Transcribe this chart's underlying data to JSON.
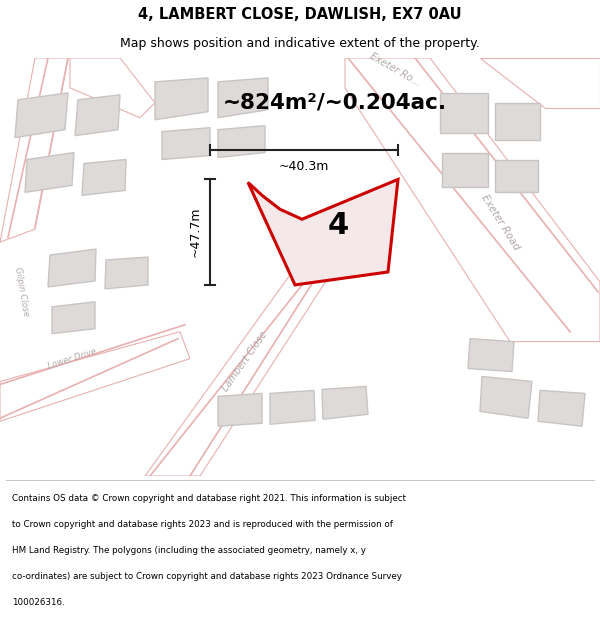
{
  "title_line1": "4, LAMBERT CLOSE, DAWLISH, EX7 0AU",
  "title_line2": "Map shows position and indicative extent of the property.",
  "area_text": "~824m²/~0.204ac.",
  "label_number": "4",
  "dim_vertical": "~47.7m",
  "dim_horizontal": "~40.3m",
  "footer_lines": [
    "Contains OS data © Crown copyright and database right 2021. This information is subject",
    "to Crown copyright and database rights 2023 and is reproduced with the permission of",
    "HM Land Registry. The polygons (including the associated geometry, namely x, y",
    "co-ordinates) are subject to Crown copyright and database rights 2023 Ordnance Survey",
    "100026316."
  ],
  "bg_color": "#f5f5f5",
  "map_bg": "#eeecea",
  "plot_color": "#cc0000",
  "plot_fill": "#f5e8e8",
  "road_color": "#e8b0b0",
  "building_color": "#c8c4c4",
  "building_fill": "#dedad8",
  "road_label_color": "#b0a8a8",
  "dim_line_color": "#222222",
  "annotation_color": "#111111"
}
